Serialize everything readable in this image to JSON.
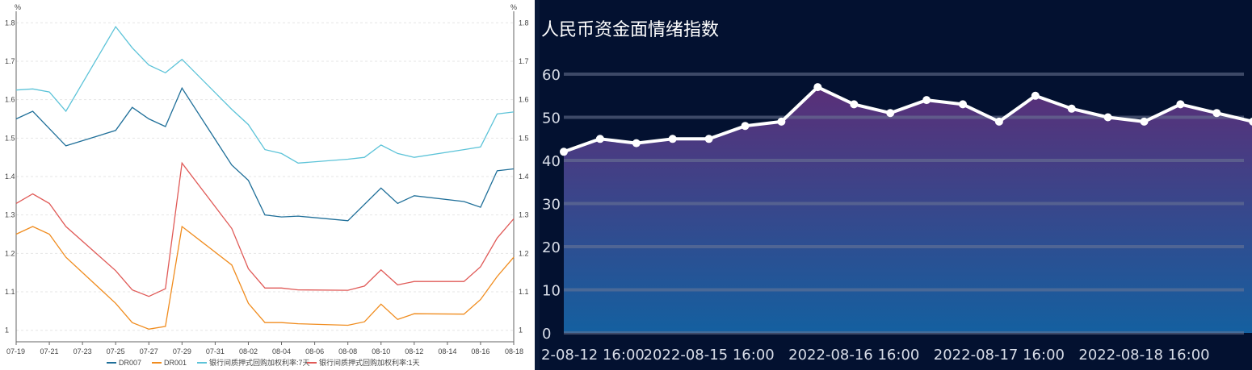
{
  "chart_data": [
    {
      "type": "line",
      "title": "",
      "y_unit_left": "%",
      "y_unit_right": "%",
      "ylim": [
        0.97,
        1.83
      ],
      "y_ticks": [
        "1",
        "1.1",
        "1.2",
        "1.3",
        "1.4",
        "1.5",
        "1.6",
        "1.7",
        "1.8"
      ],
      "y_tick_values": [
        1.0,
        1.1,
        1.2,
        1.3,
        1.4,
        1.5,
        1.6,
        1.7,
        1.8
      ],
      "x_day_range": [
        0,
        30
      ],
      "x_ticks": [
        {
          "day": 0,
          "label": "07-19"
        },
        {
          "day": 2,
          "label": "07-21"
        },
        {
          "day": 4,
          "label": "07-23"
        },
        {
          "day": 6,
          "label": "07-25"
        },
        {
          "day": 8,
          "label": "07-27"
        },
        {
          "day": 10,
          "label": "07-29"
        },
        {
          "day": 12,
          "label": "07-31"
        },
        {
          "day": 14,
          "label": "08-02"
        },
        {
          "day": 16,
          "label": "08-04"
        },
        {
          "day": 18,
          "label": "08-06"
        },
        {
          "day": 20,
          "label": "08-08"
        },
        {
          "day": 22,
          "label": "08-10"
        },
        {
          "day": 24,
          "label": "08-12"
        },
        {
          "day": 26,
          "label": "08-14"
        },
        {
          "day": 28,
          "label": "08-16"
        },
        {
          "day": 30,
          "label": "08-18"
        }
      ],
      "series": [
        {
          "name": "DR007",
          "color": "#1f6f99",
          "points": [
            [
              0,
              1.55
            ],
            [
              1,
              1.57
            ],
            [
              3,
              1.48
            ],
            [
              6,
              1.52
            ],
            [
              7,
              1.58
            ],
            [
              8,
              1.55
            ],
            [
              9,
              1.53
            ],
            [
              10,
              1.63
            ],
            [
              13,
              1.43
            ],
            [
              14,
              1.39
            ],
            [
              15,
              1.3
            ],
            [
              16,
              1.295
            ],
            [
              17,
              1.297
            ],
            [
              20,
              1.285
            ],
            [
              22,
              1.37
            ],
            [
              23,
              1.33
            ],
            [
              24,
              1.35
            ],
            [
              27,
              1.335
            ],
            [
              28,
              1.32
            ],
            [
              29,
              1.415
            ],
            [
              30,
              1.42
            ]
          ]
        },
        {
          "name": "DR001",
          "color": "#f08c1e",
          "points": [
            [
              0,
              1.25
            ],
            [
              1,
              1.27
            ],
            [
              2,
              1.25
            ],
            [
              3,
              1.19
            ],
            [
              6,
              1.07
            ],
            [
              7,
              1.02
            ],
            [
              8,
              1.003
            ],
            [
              9,
              1.01
            ],
            [
              10,
              1.27
            ],
            [
              13,
              1.17
            ],
            [
              14,
              1.07
            ],
            [
              15,
              1.02
            ],
            [
              16,
              1.02
            ],
            [
              17,
              1.017
            ],
            [
              20,
              1.013
            ],
            [
              21,
              1.022
            ],
            [
              22,
              1.068
            ],
            [
              23,
              1.028
            ],
            [
              24,
              1.043
            ],
            [
              27,
              1.042
            ],
            [
              28,
              1.08
            ],
            [
              29,
              1.14
            ],
            [
              30,
              1.19
            ]
          ]
        },
        {
          "name": "银行间质押式回购加权利率:7天",
          "color": "#5cc3d8",
          "points": [
            [
              0,
              1.625
            ],
            [
              1,
              1.628
            ],
            [
              2,
              1.62
            ],
            [
              3,
              1.57
            ],
            [
              6,
              1.79
            ],
            [
              7,
              1.735
            ],
            [
              8,
              1.69
            ],
            [
              9,
              1.67
            ],
            [
              10,
              1.705
            ],
            [
              13,
              1.575
            ],
            [
              14,
              1.535
            ],
            [
              15,
              1.47
            ],
            [
              16,
              1.46
            ],
            [
              17,
              1.435
            ],
            [
              20,
              1.445
            ],
            [
              21,
              1.45
            ],
            [
              22,
              1.482
            ],
            [
              23,
              1.46
            ],
            [
              24,
              1.45
            ],
            [
              27,
              1.47
            ],
            [
              28,
              1.477
            ],
            [
              29,
              1.563
            ],
            [
              30,
              1.568
            ]
          ]
        },
        {
          "name": "银行间质押式回购加权利率:1天",
          "color": "#e05a57",
          "points": [
            [
              0,
              1.33
            ],
            [
              1,
              1.355
            ],
            [
              2,
              1.33
            ],
            [
              3,
              1.27
            ],
            [
              6,
              1.155
            ],
            [
              7,
              1.105
            ],
            [
              8,
              1.088
            ],
            [
              9,
              1.108
            ],
            [
              10,
              1.435
            ],
            [
              13,
              1.265
            ],
            [
              14,
              1.16
            ],
            [
              15,
              1.11
            ],
            [
              16,
              1.11
            ],
            [
              17,
              1.105
            ],
            [
              20,
              1.104
            ],
            [
              21,
              1.115
            ],
            [
              22,
              1.157
            ],
            [
              23,
              1.118
            ],
            [
              24,
              1.127
            ],
            [
              27,
              1.127
            ],
            [
              28,
              1.165
            ],
            [
              29,
              1.24
            ],
            [
              30,
              1.29
            ]
          ]
        }
      ]
    },
    {
      "type": "area",
      "title": "人民币资金面情绪指数",
      "ylim": [
        0,
        60
      ],
      "y_ticks": [
        "0",
        "10",
        "20",
        "30",
        "40",
        "50",
        "60"
      ],
      "y_tick_values": [
        0,
        10,
        20,
        30,
        40,
        50,
        60
      ],
      "x_labels": [
        "2-08-12 16:00",
        "2022-08-15 16:00",
        "2022-08-16 16:00",
        "2022-08-17 16:00",
        "2022-08-18 16:00"
      ],
      "x_label_index": [
        0,
        4,
        8,
        12,
        16
      ],
      "x_index_range": [
        0,
        18.75
      ],
      "line_color": "#ffffff",
      "fill_top_color": "#5a2f78",
      "fill_bottom_color": "#1460a0",
      "values": [
        42,
        45,
        44,
        45,
        45,
        48,
        49,
        57,
        53,
        51,
        54,
        53,
        49,
        55,
        52,
        50,
        49,
        53,
        51,
        49
      ]
    }
  ]
}
